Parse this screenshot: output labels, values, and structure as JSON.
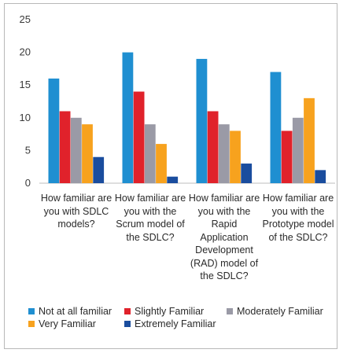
{
  "chart_data": {
    "type": "bar",
    "categories": [
      "How familiar are you with SDLC models?",
      "How familiar are you with the Scrum model of the SDLC?",
      "How familiar are you with the Rapid Application Development (RAD) model of the SDLC?",
      "How familiar are you with the Prototype model of the SDLC?"
    ],
    "category_lines": [
      [
        "How familiar are",
        "you with SDLC",
        "models?"
      ],
      [
        "How familiar are",
        "you with the",
        "Scrum model of",
        "the SDLC?"
      ],
      [
        "How familiar are",
        "you with the",
        "Rapid",
        "Application",
        "Development",
        "(RAD) model of",
        "the SDLC?"
      ],
      [
        "How familiar are",
        "you with the",
        "Prototype model",
        "of the SDLC?"
      ]
    ],
    "series": [
      {
        "name": "Not at all familiar",
        "color": "#1f8fd1",
        "values": [
          16,
          20,
          19,
          17
        ]
      },
      {
        "name": "Slightly Familiar",
        "color": "#e0222b",
        "values": [
          11,
          14,
          11,
          8
        ]
      },
      {
        "name": "Moderately Familiar",
        "color": "#9a9aa6",
        "values": [
          10,
          9,
          9,
          10
        ]
      },
      {
        "name": "Very Familiar",
        "color": "#f7a21e",
        "values": [
          9,
          6,
          8,
          13
        ]
      },
      {
        "name": "Extremely Familiar",
        "color": "#1a4d9e",
        "values": [
          4,
          1,
          3,
          2
        ]
      }
    ],
    "ylim": [
      0,
      25
    ],
    "yticks": [
      "0",
      "5",
      "10",
      "15",
      "20",
      "25"
    ],
    "legend_position": "bottom",
    "grid": false
  }
}
